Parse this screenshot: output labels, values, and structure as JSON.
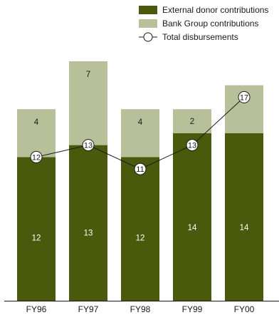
{
  "chart_data": {
    "type": "bar",
    "stacked": true,
    "categories": [
      "FY96",
      "FY97",
      "FY98",
      "FY99",
      "FY00"
    ],
    "series": [
      {
        "name": "External donor contributions",
        "values": [
          12,
          13,
          12,
          14,
          14
        ],
        "color": "#4a5a0c"
      },
      {
        "name": "Bank Group contributions",
        "values": [
          4,
          7,
          4,
          2,
          4
        ],
        "color": "#b8c09a"
      }
    ],
    "line": {
      "name": "Total disbursements",
      "values": [
        12,
        13,
        11,
        13,
        17
      ]
    },
    "legend_position": "top-right",
    "grid": false,
    "ylim": [
      0,
      20
    ]
  }
}
